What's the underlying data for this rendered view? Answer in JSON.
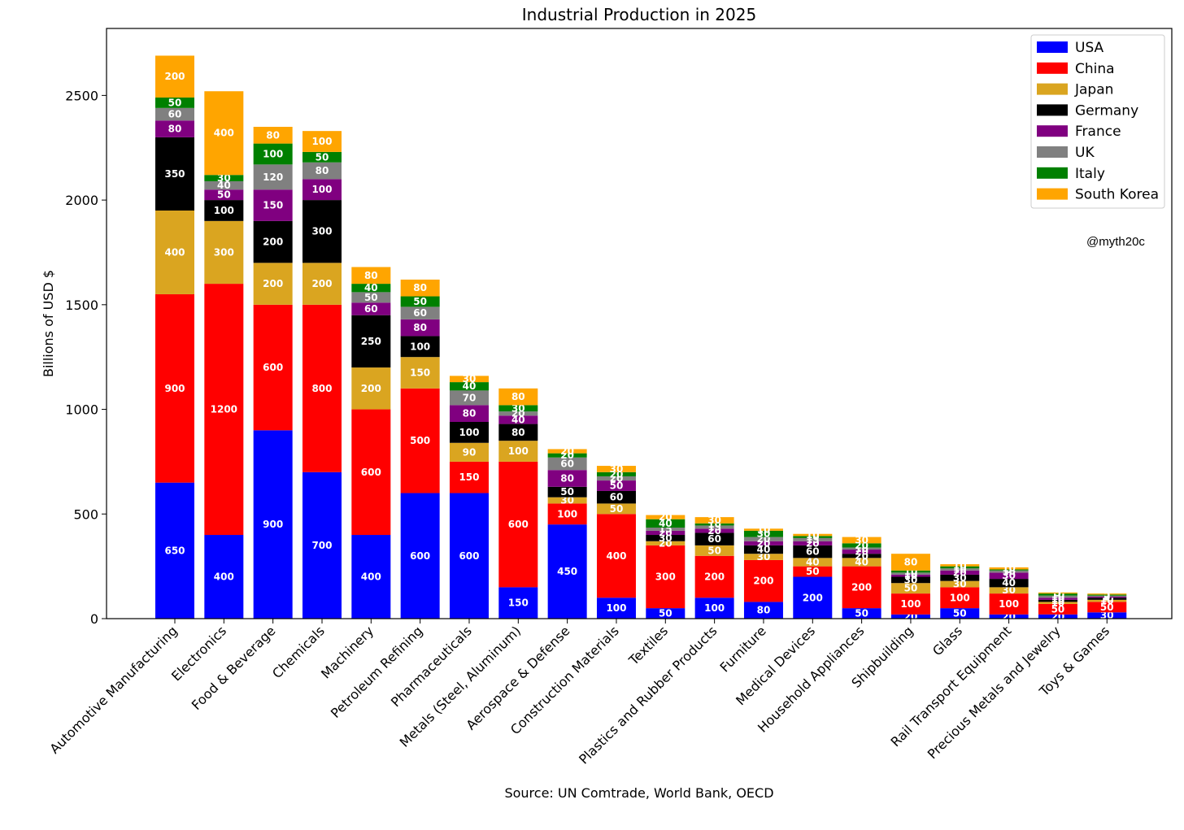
{
  "chart_data": {
    "type": "bar",
    "stacked": true,
    "title": "Industrial Production in 2025",
    "xlabel": "Source: UN Comtrade, World Bank, OECD",
    "ylabel": "Billions of USD $",
    "ylim": [
      0,
      2820
    ],
    "yticks": [
      0,
      500,
      1000,
      1500,
      2000,
      2500
    ],
    "grid": false,
    "legend_position": "top-right",
    "watermark": "@myth20c",
    "categories": [
      "Automotive Manufacturing",
      "Electronics",
      "Food & Beverage",
      "Chemicals",
      "Machinery",
      "Petroleum Refining",
      "Pharmaceuticals",
      "Metals (Steel, Aluminum)",
      "Aerospace & Defense",
      "Construction Materials",
      "Textiles",
      "Plastics and Rubber Products",
      "Furniture",
      "Medical Devices",
      "Household Appliances",
      "Shipbuilding",
      "Glass",
      "Rail Transport Equipment",
      "Precious Metals and Jewelry",
      "Toys & Games"
    ],
    "series": [
      {
        "name": "USA",
        "color": "#0000ff",
        "values": [
          650,
          400,
          900,
          700,
          400,
          600,
          600,
          150,
          450,
          100,
          50,
          100,
          80,
          200,
          50,
          20,
          50,
          20,
          20,
          30
        ]
      },
      {
        "name": "China",
        "color": "#ff0000",
        "values": [
          900,
          1200,
          600,
          800,
          600,
          500,
          150,
          600,
          100,
          400,
          300,
          200,
          200,
          50,
          200,
          100,
          100,
          100,
          50,
          50
        ]
      },
      {
        "name": "Japan",
        "color": "#daa520",
        "values": [
          400,
          300,
          200,
          200,
          200,
          150,
          90,
          100,
          30,
          50,
          20,
          50,
          30,
          40,
          40,
          50,
          30,
          30,
          10,
          10
        ]
      },
      {
        "name": "Germany",
        "color": "#000000",
        "values": [
          350,
          100,
          200,
          300,
          250,
          100,
          100,
          80,
          50,
          60,
          30,
          60,
          40,
          60,
          20,
          30,
          30,
          40,
          10,
          10
        ]
      },
      {
        "name": "France",
        "color": "#800080",
        "values": [
          80,
          50,
          150,
          100,
          60,
          80,
          80,
          40,
          80,
          50,
          20,
          20,
          20,
          20,
          20,
          10,
          20,
          30,
          10,
          5
        ]
      },
      {
        "name": "UK",
        "color": "#808080",
        "values": [
          60,
          40,
          120,
          80,
          50,
          60,
          70,
          20,
          60,
          20,
          15,
          15,
          20,
          15,
          10,
          10,
          10,
          10,
          10,
          5
        ]
      },
      {
        "name": "Italy",
        "color": "#008000",
        "values": [
          50,
          30,
          100,
          50,
          40,
          50,
          40,
          30,
          20,
          20,
          40,
          10,
          30,
          10,
          20,
          10,
          10,
          5,
          10,
          5
        ]
      },
      {
        "name": "South Korea",
        "color": "#ffa500",
        "values": [
          200,
          400,
          80,
          100,
          80,
          80,
          30,
          80,
          20,
          30,
          20,
          30,
          10,
          10,
          30,
          80,
          10,
          10,
          5,
          5
        ]
      }
    ]
  }
}
